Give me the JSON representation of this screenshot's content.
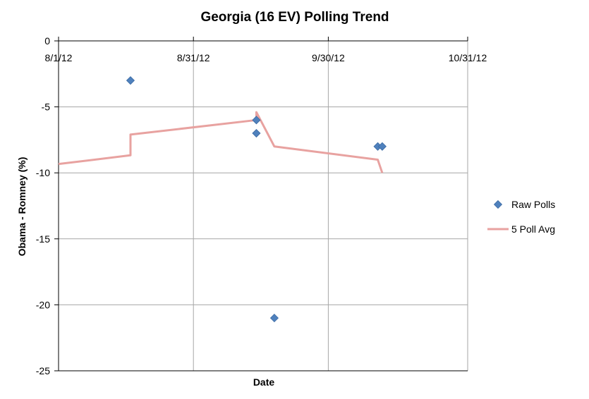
{
  "chart_data": {
    "type": "scatter",
    "title": "Georgia (16 EV) Polling Trend",
    "xlabel": "Date",
    "ylabel": "Obama - Romney (%)",
    "x_ticks": [
      "8/1/12",
      "8/31/12",
      "9/30/12",
      "10/31/12"
    ],
    "y_ticks": [
      "0",
      "-5",
      "-10",
      "-15",
      "-20",
      "-25"
    ],
    "xlim": [
      "2012-08-01",
      "2012-10-31"
    ],
    "ylim": [
      -25,
      0
    ],
    "grid": true,
    "legend_position": "right",
    "series": [
      {
        "name": "Raw Polls",
        "kind": "scatter",
        "marker": "diamond",
        "color": "#4F81BD",
        "points": [
          {
            "x": "2012-08-17",
            "y": -3
          },
          {
            "x": "2012-09-14",
            "y": -6
          },
          {
            "x": "2012-09-14",
            "y": -7
          },
          {
            "x": "2012-09-18",
            "y": -21
          },
          {
            "x": "2012-10-11",
            "y": -8
          },
          {
            "x": "2012-10-12",
            "y": -8
          }
        ]
      },
      {
        "name": "5 Poll Avg",
        "kind": "line",
        "color": "#E8A2A0",
        "points": [
          {
            "x": "2012-08-01",
            "y": -9.33
          },
          {
            "x": "2012-08-17",
            "y": -8.67
          },
          {
            "x": "2012-08-17",
            "y": -7.1
          },
          {
            "x": "2012-09-14",
            "y": -6.0
          },
          {
            "x": "2012-09-14",
            "y": -5.4
          },
          {
            "x": "2012-09-18",
            "y": -8.0
          },
          {
            "x": "2012-10-11",
            "y": -9.0
          },
          {
            "x": "2012-10-12",
            "y": -10.0
          }
        ]
      }
    ]
  }
}
